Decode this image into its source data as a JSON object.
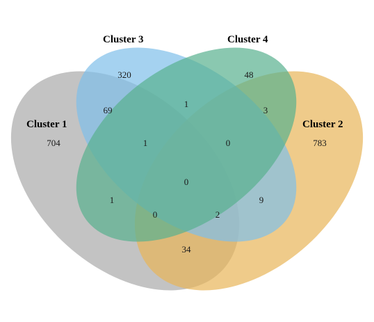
{
  "venn": {
    "sets": [
      {
        "key": "c1",
        "label": "Cluster 1",
        "color": "#a9a9a9"
      },
      {
        "key": "c2",
        "label": "Cluster 2",
        "color": "#e8b558"
      },
      {
        "key": "c3",
        "label": "Cluster 3",
        "color": "#7fbfea"
      },
      {
        "key": "c4",
        "label": "Cluster 4",
        "color": "#58b08f"
      }
    ],
    "regions": {
      "c1_only": "704",
      "c2_only": "783",
      "c3_only": "320",
      "c4_only": "48",
      "c1_c3": "69",
      "c3_c4": "1",
      "c2_c4": "3",
      "c1_c3_c4": "1",
      "c2_c3_c4": "0",
      "c1_c2_c3_c4": "0",
      "c1_c4": "1",
      "c2_c3": "9",
      "c1_c2_c4": "0",
      "c1_c2_c3": "2",
      "c1_c2": "34"
    }
  }
}
